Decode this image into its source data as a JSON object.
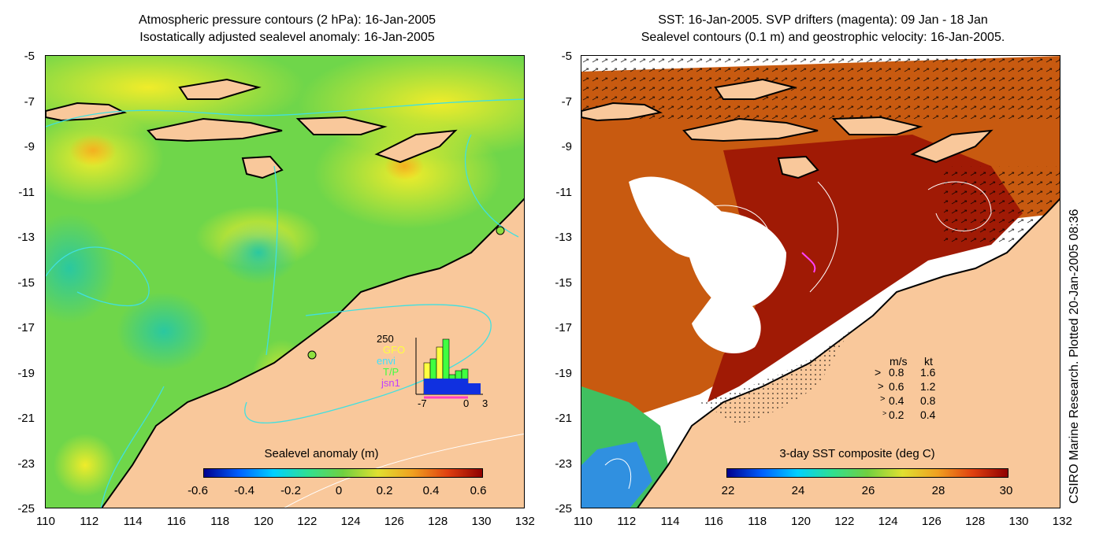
{
  "left_panel": {
    "title_line1": "Atmospheric pressure contours (2 hPa): 16-Jan-2005",
    "title_line2": "Isostatically adjusted sealevel anomaly: 16-Jan-2005",
    "colorbar_label": "Sealevel anomaly (m)",
    "colorbar_ticks": [
      "-0.6",
      "-0.4",
      "-0.2",
      "0",
      "0.2",
      "0.4",
      "0.6"
    ],
    "inset": {
      "top_value": "250",
      "series": [
        {
          "name": "GFO",
          "color": "#ffff40"
        },
        {
          "name": "envi",
          "color": "#40e0ff"
        },
        {
          "name": "T/P",
          "color": "#40ff40"
        },
        {
          "name": "jsn1",
          "color": "#c040ff"
        }
      ],
      "x_ticks": [
        "-7",
        "0",
        "3"
      ]
    }
  },
  "right_panel": {
    "title_line1": "SST: 16-Jan-2005. SVP drifters (magenta): 09 Jan - 18 Jan",
    "title_line2": "Sealevel contours (0.1 m) and geostrophic velocity: 16-Jan-2005.",
    "colorbar_label": "3-day SST composite (deg C)",
    "colorbar_ticks": [
      "22",
      "24",
      "26",
      "28",
      "30"
    ],
    "vector_legend": {
      "header_ms": "m/s",
      "header_kt": "kt",
      "rows": [
        {
          "ms": "0.8",
          "kt": "1.6"
        },
        {
          "ms": "0.6",
          "kt": "1.2"
        },
        {
          "ms": "0.4",
          "kt": "0.8"
        },
        {
          "ms": "0.2",
          "kt": "0.4"
        }
      ]
    }
  },
  "y_ticks": [
    "-5",
    "-7",
    "-9",
    "-11",
    "-13",
    "-15",
    "-17",
    "-19",
    "-21",
    "-23",
    "-25"
  ],
  "x_ticks": [
    "110",
    "112",
    "114",
    "116",
    "118",
    "120",
    "122",
    "124",
    "126",
    "128",
    "130",
    "132"
  ],
  "credit": "CSIRO Marine Research. Plotted 20-Jan-2005 08:36",
  "colors": {
    "land": "#f9c89b",
    "sea_left": "#5cd45c",
    "sea_right": "#a01a05",
    "contour_cyan": "#40e0e0"
  }
}
